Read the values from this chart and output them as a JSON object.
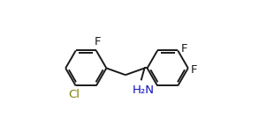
{
  "bg_color": "#ffffff",
  "bond_color": "#1a1a1a",
  "atom_colors": {
    "F": "#1a1a1a",
    "Cl": "#808000",
    "N": "#1010c0",
    "C": "#1a1a1a"
  },
  "font_size_atom": 9.5,
  "line_width": 1.4,
  "figsize": [
    3.1,
    1.58
  ],
  "dpi": 100
}
